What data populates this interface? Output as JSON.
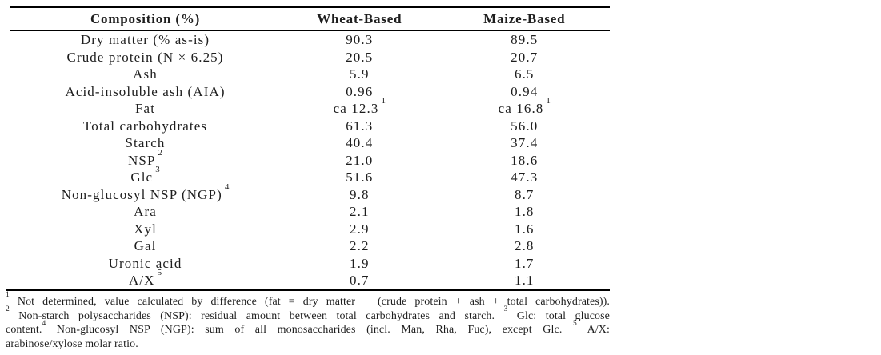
{
  "page": {
    "background_color": "#ffffff",
    "text_color": "#1e1e1e",
    "rule_color": "#000000"
  },
  "table": {
    "columns": [
      "Composition (%)",
      "Wheat-Based",
      "Maize-Based"
    ],
    "rows": [
      {
        "label": "Dry matter (% as-is)",
        "label_sup": "",
        "wheat": "90.3",
        "wheat_sup": "",
        "maize": "89.5",
        "maize_sup": ""
      },
      {
        "label": "Crude protein (N × 6.25)",
        "label_sup": "",
        "wheat": "20.5",
        "wheat_sup": "",
        "maize": "20.7",
        "maize_sup": ""
      },
      {
        "label": "Ash",
        "label_sup": "",
        "wheat": "5.9",
        "wheat_sup": "",
        "maize": "6.5",
        "maize_sup": ""
      },
      {
        "label": "Acid-insoluble ash (AIA)",
        "label_sup": "",
        "wheat": "0.96",
        "wheat_sup": "",
        "maize": "0.94",
        "maize_sup": ""
      },
      {
        "label": "Fat",
        "label_sup": "",
        "wheat": "ca 12.3",
        "wheat_sup": "1",
        "maize": "ca 16.8",
        "maize_sup": "1"
      },
      {
        "label": "Total carbohydrates",
        "label_sup": "",
        "wheat": "61.3",
        "wheat_sup": "",
        "maize": "56.0",
        "maize_sup": ""
      },
      {
        "label": "Starch",
        "label_sup": "",
        "wheat": "40.4",
        "wheat_sup": "",
        "maize": "37.4",
        "maize_sup": ""
      },
      {
        "label": "NSP",
        "label_sup": "2",
        "wheat": "21.0",
        "wheat_sup": "",
        "maize": "18.6",
        "maize_sup": ""
      },
      {
        "label": "Glc",
        "label_sup": "3",
        "wheat": "51.6",
        "wheat_sup": "",
        "maize": "47.3",
        "maize_sup": ""
      },
      {
        "label": "Non-glucosyl NSP (NGP)",
        "label_sup": "4",
        "wheat": "9.8",
        "wheat_sup": "",
        "maize": "8.7",
        "maize_sup": ""
      },
      {
        "label": "Ara",
        "label_sup": "",
        "wheat": "2.1",
        "wheat_sup": "",
        "maize": "1.8",
        "maize_sup": ""
      },
      {
        "label": "Xyl",
        "label_sup": "",
        "wheat": "2.9",
        "wheat_sup": "",
        "maize": "1.6",
        "maize_sup": ""
      },
      {
        "label": "Gal",
        "label_sup": "",
        "wheat": "2.2",
        "wheat_sup": "",
        "maize": "2.8",
        "maize_sup": ""
      },
      {
        "label": "Uronic acid",
        "label_sup": "",
        "wheat": "1.9",
        "wheat_sup": "",
        "maize": "1.7",
        "maize_sup": ""
      },
      {
        "label": "A/X",
        "label_sup": "5",
        "wheat": "0.7",
        "wheat_sup": "",
        "maize": "1.1",
        "maize_sup": ""
      }
    ]
  },
  "footnotes": {
    "lines": [
      {
        "justify": true,
        "segments": [
          {
            "sup": "1"
          },
          {
            "text": " Not determined, value calculated by difference (fat = dry matter − (crude protein + ash + total carbohydrates))."
          }
        ]
      },
      {
        "justify": true,
        "segments": [
          {
            "sup": "2"
          },
          {
            "text": " Non-starch polysaccharides (NSP): residual amount between total carbohydrates and starch. "
          },
          {
            "sup": "3"
          },
          {
            "text": " Glc: total glucose"
          }
        ]
      },
      {
        "justify": true,
        "segments": [
          {
            "text": "content."
          },
          {
            "sup": "4"
          },
          {
            "text": " Non-glucosyl NSP (NGP): sum of all monosaccharides (incl. Man, Rha, Fuc), except Glc. "
          },
          {
            "sup": "5"
          },
          {
            "text": " A/X:"
          }
        ]
      },
      {
        "justify": false,
        "segments": [
          {
            "text": "arabinose/xylose molar ratio."
          }
        ]
      }
    ]
  }
}
